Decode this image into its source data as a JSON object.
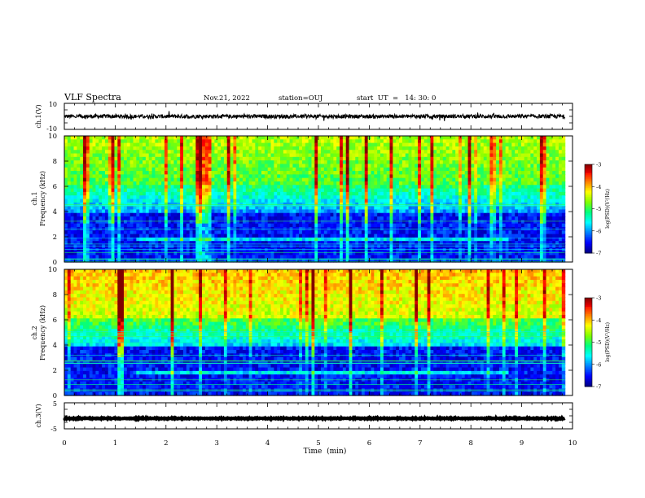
{
  "header": {
    "title": "VLF Spectra",
    "date": "Nov.21, 2022",
    "station": "station=OUJ",
    "start_ut": "start  UT  =   14: 30: 0"
  },
  "colors": {
    "colormap": [
      "#000080",
      "#0000ff",
      "#0080ff",
      "#00ffff",
      "#00ff80",
      "#80ff00",
      "#ffff00",
      "#ff8000",
      "#ff0000",
      "#800000",
      "#ffffff"
    ],
    "trace": "#000000"
  },
  "chart_data": [
    {
      "type": "line",
      "name": "ch1-waveform",
      "ylabel": "ch.1(V)",
      "ylim": [
        -10,
        10
      ],
      "yticks": [
        "10",
        "-10"
      ],
      "xlim": [
        0,
        10
      ],
      "baseline": 0,
      "noise_amplitude": 1.5,
      "grid": false
    },
    {
      "type": "heatmap",
      "name": "ch1-spectrogram",
      "ylabel": "ch.1\nFrequency (kHz)",
      "ylim": [
        0,
        10
      ],
      "yticks": [
        "0",
        "2",
        "4",
        "6",
        "8",
        "10"
      ],
      "xlim": [
        0,
        9.85
      ],
      "data_end_min": 9.85,
      "colorbar": {
        "label": "log(PSD)(V²/Hz)",
        "range": [
          -7,
          -3
        ],
        "ticks": [
          "-3",
          "-4",
          "-5",
          "-6",
          "-7"
        ]
      },
      "intensity_profile": {
        "high_band_khz": [
          6,
          10
        ],
        "mid_band_khz": [
          4,
          6
        ],
        "low_band_khz": [
          0,
          4
        ],
        "emission_band_khz": [
          1.6,
          2.0
        ],
        "emission_end_min": 8.75
      }
    },
    {
      "type": "heatmap",
      "name": "ch2-spectrogram",
      "ylabel": "ch.2\nFrequency (kHz)",
      "ylim": [
        0,
        10
      ],
      "yticks": [
        "0",
        "2",
        "4",
        "6",
        "8",
        "10"
      ],
      "xlim": [
        0,
        9.85
      ],
      "data_end_min": 9.85,
      "colorbar": {
        "label": "log(PSD)(V²/Hz)",
        "range": [
          -7,
          -3
        ],
        "ticks": [
          "-3",
          "-4",
          "-5",
          "-6",
          "-7"
        ]
      },
      "intensity_profile": {
        "high_band_khz": [
          6,
          10
        ],
        "mid_band_khz": [
          4,
          6
        ],
        "low_band_khz": [
          0,
          4
        ],
        "emission_band_khz": [
          1.6,
          2.0
        ],
        "emission_end_min": 8.75
      }
    },
    {
      "type": "line",
      "name": "ch3-waveform",
      "ylabel": "ch.3(V)",
      "ylim": [
        -5,
        5
      ],
      "yticks": [
        "5",
        "-5"
      ],
      "xlim": [
        0,
        10
      ],
      "baseline": -1,
      "noise_amplitude": 0.15,
      "grid": false
    }
  ],
  "xaxis": {
    "label": "Time  (min)",
    "ticks": [
      "0",
      "1",
      "2",
      "3",
      "4",
      "5",
      "6",
      "7",
      "8",
      "9",
      "10"
    ],
    "range": [
      0,
      10
    ]
  }
}
